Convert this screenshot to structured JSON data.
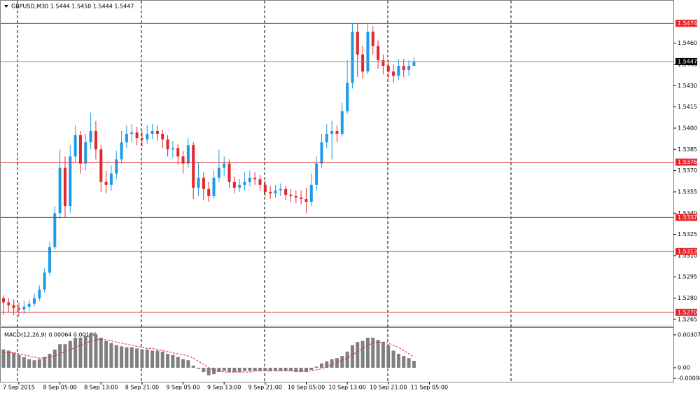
{
  "chart_data": [
    {
      "type": "candlestick",
      "title": "GBPUSD,M30  1.5444 1.5450 1.5444 1.5447",
      "x": [
        null,
        null,
        null,
        "7 Sep 2015",
        null,
        null,
        null,
        null,
        null,
        null,
        null,
        "8 Sep 05:00",
        null,
        null,
        null,
        null,
        null,
        null,
        null,
        "8 Sep 13:00",
        null,
        null,
        null,
        null,
        null,
        null,
        null,
        "8 Sep 21:00",
        null,
        null,
        null,
        null,
        null,
        null,
        null,
        "9 Sep 05:00",
        null,
        null,
        null,
        null,
        null,
        null,
        null,
        "9 Sep 13:00",
        null,
        null,
        null,
        null,
        null,
        null,
        null,
        "9 Sep 21:00",
        null,
        null,
        null,
        null,
        null,
        null,
        null,
        "10 Sep 05:00",
        null,
        null,
        null,
        null,
        null,
        null,
        null,
        "10 Sep 13:00",
        null,
        null,
        null,
        null,
        null,
        null,
        null,
        "10 Sep 21:00",
        null,
        null,
        null,
        null,
        null,
        null,
        null,
        "11 Sep 05:00"
      ],
      "open": [
        1.528,
        1.5277,
        1.5275,
        1.5273,
        1.5272,
        1.5274,
        1.5276,
        1.528,
        1.5286,
        1.5298,
        1.5316,
        1.534,
        1.5372,
        1.5345,
        1.538,
        1.5395,
        1.5375,
        1.539,
        1.5398,
        1.5385,
        1.5362,
        1.536,
        1.5368,
        1.5378,
        1.539,
        1.5396,
        1.5397,
        1.5393,
        1.5392,
        1.5396,
        1.5398,
        1.5396,
        1.5392,
        1.5385,
        1.5386,
        1.538,
        1.5375,
        1.5388,
        1.5358,
        1.5365,
        1.5357,
        1.5352,
        1.5365,
        1.5372,
        1.5375,
        1.5362,
        1.5358,
        1.536,
        1.5362,
        1.5365,
        1.5364,
        1.536,
        1.5355,
        1.5354,
        1.5356,
        1.5357,
        1.5353,
        1.5352,
        1.5351,
        1.535,
        1.5348,
        1.536,
        1.5375,
        1.539,
        1.5396,
        1.5398,
        1.5396,
        1.5412,
        1.5432,
        1.5468,
        1.5452,
        1.544,
        1.5468,
        1.5458,
        1.5448,
        1.5444,
        1.544,
        1.5437,
        1.5444,
        1.5441,
        1.5444,
        null,
        null,
        null
      ],
      "high": [
        1.5282,
        1.528,
        1.5279,
        1.5277,
        1.5278,
        1.5279,
        1.5283,
        1.5289,
        1.5301,
        1.532,
        1.5345,
        1.5385,
        1.538,
        1.5388,
        1.5402,
        1.5398,
        1.5396,
        1.5411,
        1.5405,
        1.5388,
        1.537,
        1.5374,
        1.5384,
        1.5398,
        1.5402,
        1.5403,
        1.5401,
        1.5398,
        1.5402,
        1.5403,
        1.5402,
        1.5399,
        1.5395,
        1.5391,
        1.5389,
        1.5384,
        1.5393,
        1.539,
        1.5376,
        1.5369,
        1.5362,
        1.537,
        1.5385,
        1.538,
        1.5378,
        1.5366,
        1.5364,
        1.5369,
        1.537,
        1.5369,
        1.5367,
        1.5363,
        1.5359,
        1.536,
        1.5361,
        1.5359,
        1.5357,
        1.5356,
        1.5356,
        1.5358,
        1.5368,
        1.538,
        1.5396,
        1.5403,
        1.5405,
        1.5402,
        1.5418,
        1.5448,
        1.5474,
        1.5474,
        1.5458,
        1.5474,
        1.5472,
        1.5462,
        1.5452,
        1.5448,
        1.5445,
        1.5449,
        1.5449,
        1.5448,
        1.545,
        null,
        null,
        null
      ],
      "low": [
        1.5268,
        1.527,
        1.5268,
        1.5267,
        1.5269,
        1.5271,
        1.5274,
        1.5278,
        1.5284,
        1.5296,
        1.5314,
        1.5336,
        1.5337,
        1.534,
        1.5376,
        1.5368,
        1.537,
        1.5385,
        1.5378,
        1.5355,
        1.5354,
        1.5356,
        1.5364,
        1.5375,
        1.5386,
        1.539,
        1.5388,
        1.5387,
        1.5389,
        1.5392,
        1.5391,
        1.5386,
        1.538,
        1.5379,
        1.5374,
        1.5368,
        1.5372,
        1.535,
        1.5352,
        1.5349,
        1.5348,
        1.535,
        1.5362,
        1.5366,
        1.5358,
        1.5354,
        1.5355,
        1.5356,
        1.5359,
        1.536,
        1.5356,
        1.5352,
        1.535,
        1.5351,
        1.5352,
        1.5349,
        1.5348,
        1.5347,
        1.5346,
        1.534,
        1.5345,
        1.5356,
        1.5372,
        1.5386,
        1.5378,
        1.539,
        1.5394,
        1.541,
        1.5428,
        1.5436,
        1.5435,
        1.5438,
        1.5452,
        1.5442,
        1.5438,
        1.5435,
        1.5432,
        1.5434,
        1.5436,
        1.5437,
        1.5444,
        null,
        null,
        null
      ],
      "close": [
        1.5277,
        1.5275,
        1.5273,
        1.5272,
        1.5274,
        1.5276,
        1.528,
        1.5286,
        1.5298,
        1.5316,
        1.534,
        1.5372,
        1.5345,
        1.538,
        1.5395,
        1.5375,
        1.539,
        1.5398,
        1.5385,
        1.5362,
        1.536,
        1.5368,
        1.5378,
        1.539,
        1.5396,
        1.5397,
        1.5393,
        1.5392,
        1.5396,
        1.5398,
        1.5396,
        1.5392,
        1.5385,
        1.5386,
        1.538,
        1.5375,
        1.5388,
        1.5358,
        1.5365,
        1.5357,
        1.5352,
        1.5365,
        1.5372,
        1.5375,
        1.5362,
        1.5358,
        1.536,
        1.5362,
        1.5365,
        1.5364,
        1.536,
        1.5355,
        1.5354,
        1.5356,
        1.5357,
        1.5353,
        1.5352,
        1.5351,
        1.535,
        1.5348,
        1.536,
        1.5375,
        1.539,
        1.5396,
        1.5398,
        1.5396,
        1.5412,
        1.5432,
        1.5468,
        1.5452,
        1.544,
        1.5468,
        1.5458,
        1.5448,
        1.5444,
        1.544,
        1.5437,
        1.5444,
        1.5441,
        1.5444,
        1.5447,
        null,
        null,
        null
      ],
      "up_color": "#1e9be8",
      "down_color": "#e3262b",
      "ylim": [
        1.52605,
        1.5489
      ],
      "yticks": [
        1.5265,
        {
          "value": 1.528,
          "label": "1.5280"
        },
        1.5295,
        {
          "value": 1.531,
          "label": "1.5310"
        },
        1.5325,
        {
          "value": 1.534,
          "label": "1.5340"
        },
        1.5355,
        {
          "value": 1.537,
          "label": "1.5370"
        },
        1.5385,
        {
          "value": 1.54,
          "label": "1.5400"
        },
        1.5415,
        {
          "value": 1.543,
          "label": "1.5430"
        },
        1.5445,
        {
          "value": 1.546,
          "label": "1.5460"
        }
      ],
      "levels": [
        1.5474,
        1.5376,
        1.5337,
        1.5313,
        {
          "value": 1.527,
          "label": "1.5270"
        }
      ],
      "level_color": "#e3262b",
      "current_price": 1.5447
    },
    {
      "type": "macd",
      "title": "MACD(12,26,9) 0.00064 0.00100",
      "values": [
        0.0017,
        0.0016,
        0.0014,
        0.0012,
        0.001,
        0.0008,
        0.0007,
        0.0008,
        0.001,
        0.0013,
        0.0017,
        0.0022,
        0.0022,
        0.0025,
        0.0028,
        0.0028,
        0.003,
        0.0032,
        0.0031,
        0.0028,
        0.0025,
        0.0023,
        0.0021,
        0.002,
        0.0019,
        0.0019,
        0.0018,
        0.0017,
        0.0017,
        0.0016,
        0.0016,
        0.0015,
        0.0013,
        0.0012,
        0.001,
        0.0008,
        0.0007,
        0.0002,
        -0.0001,
        -0.0004,
        -0.0007,
        -0.0006,
        -0.0004,
        -0.0003,
        -0.0004,
        -0.0004,
        -0.0004,
        -0.0003,
        -0.0003,
        -0.0003,
        -0.0003,
        -0.0003,
        -0.0003,
        -0.0003,
        -0.0003,
        -0.0003,
        -0.0003,
        -0.0004,
        -0.0004,
        -0.0004,
        -0.0002,
        0.0001,
        0.0004,
        0.0006,
        0.0008,
        0.0009,
        0.0011,
        0.0015,
        0.0021,
        0.0024,
        0.0025,
        0.0028,
        0.0028,
        0.0026,
        0.0024,
        0.0021,
        0.0016,
        0.0013,
        0.0011,
        0.0009,
        0.00064,
        null,
        null,
        null
      ],
      "signal": [
        0.0014,
        0.0014,
        0.0014,
        0.0013,
        0.0012,
        0.0011,
        0.001,
        0.0009,
        0.0009,
        0.001,
        0.0011,
        0.0013,
        0.0015,
        0.0017,
        0.0019,
        0.0021,
        0.0023,
        0.0025,
        0.0026,
        0.0027,
        0.0026,
        0.0025,
        0.0024,
        0.0023,
        0.0022,
        0.0021,
        0.002,
        0.0019,
        0.0018,
        0.0018,
        0.0017,
        0.0016,
        0.0015,
        0.0014,
        0.0013,
        0.0012,
        0.0011,
        0.0009,
        0.0006,
        0.0003,
        0.0,
        -0.0002,
        -0.0003,
        -0.0004,
        -0.0004,
        -0.0004,
        -0.0004,
        -0.0004,
        -0.0004,
        -0.0003,
        -0.0003,
        -0.0003,
        -0.0003,
        -0.0003,
        -0.0003,
        -0.0003,
        -0.0003,
        -0.0003,
        -0.0003,
        -0.0003,
        -0.0003,
        -0.0002,
        -0.0001,
        0.0001,
        0.0003,
        0.0005,
        0.0007,
        0.0009,
        0.0012,
        0.0015,
        0.0018,
        0.0021,
        0.0023,
        0.0024,
        0.0024,
        0.0023,
        0.0021,
        0.0019,
        0.0016,
        0.0013,
        0.001,
        null,
        null,
        null
      ],
      "bar_color": "#7f7f7f",
      "signal_color": "#e3262b",
      "ylim": [
        -0.00131,
        0.00372
      ],
      "yticks": [
        0.00307,
        {
          "value": 0,
          "label": "0.00"
        },
        -0.00098
      ]
    }
  ]
}
